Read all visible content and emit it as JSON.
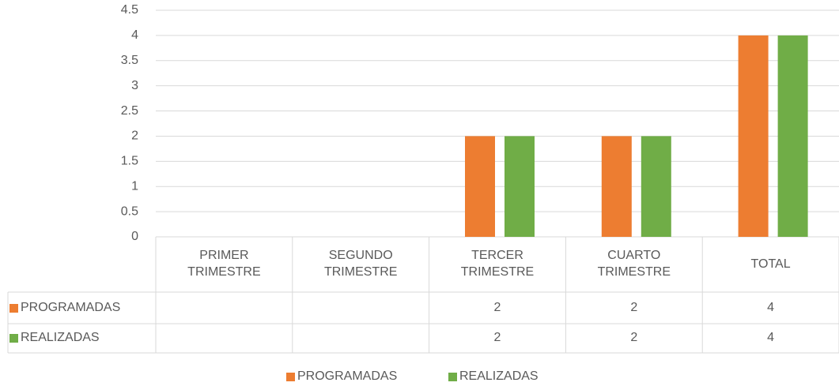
{
  "chart_data": {
    "type": "bar",
    "categories": [
      "PRIMER TRIMESTRE",
      "SEGUNDO TRIMESTRE",
      "TERCER TRIMESTRE",
      "CUARTO TRIMESTRE",
      "TOTAL"
    ],
    "series": [
      {
        "name": "PROGRAMADAS",
        "color": "#ed7d31",
        "values": [
          null,
          null,
          2,
          2,
          4
        ]
      },
      {
        "name": "REALIZADAS",
        "color": "#70ad47",
        "values": [
          null,
          null,
          2,
          2,
          4
        ]
      }
    ],
    "ylim": [
      0,
      4.5
    ],
    "yticks": [
      0,
      0.5,
      1,
      1.5,
      2,
      2.5,
      3,
      3.5,
      4,
      4.5
    ],
    "grid": true,
    "data_table": true,
    "legend": "bottom"
  }
}
